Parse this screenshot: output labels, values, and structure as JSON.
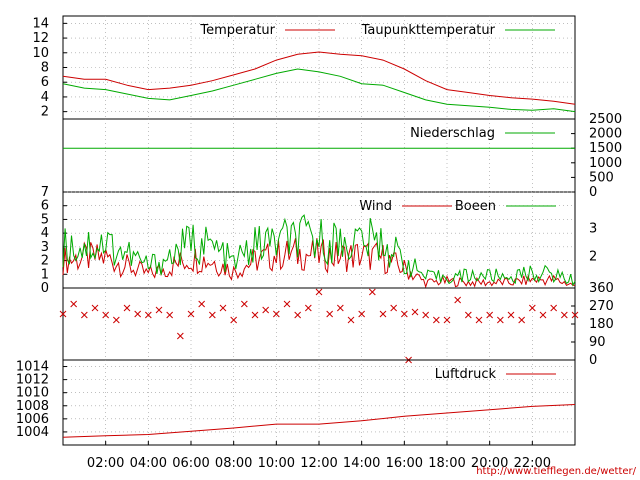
{
  "source_url": "http://www.tiefflegen.de/wetter/",
  "colors": {
    "red": "#cc0000",
    "green": "#00aa00",
    "grid": "#999999",
    "frame": "#000000"
  },
  "x_axis": {
    "labels": [
      "02:00",
      "04:00",
      "06:00",
      "08:00",
      "10:00",
      "12:00",
      "14:00",
      "16:00",
      "18:00",
      "20:00",
      "22:00"
    ],
    "hours": [
      2,
      4,
      6,
      8,
      10,
      12,
      14,
      16,
      18,
      20,
      22
    ],
    "range_hours": [
      0,
      24
    ]
  },
  "chart_data": [
    {
      "type": "line",
      "panel": "temperature",
      "ylim": [
        1,
        15
      ],
      "y_ticks": [
        2,
        4,
        6,
        8,
        10,
        12,
        14
      ],
      "legend": [
        "Temperatur",
        "Taupunkttemperatur"
      ],
      "series": [
        {
          "name": "Temperatur",
          "color": "#cc0000",
          "points": [
            [
              0,
              6.8
            ],
            [
              1,
              6.4
            ],
            [
              2,
              6.4
            ],
            [
              3,
              5.6
            ],
            [
              4,
              5.0
            ],
            [
              5,
              5.2
            ],
            [
              6,
              5.6
            ],
            [
              7,
              6.2
            ],
            [
              8,
              7.0
            ],
            [
              9,
              7.8
            ],
            [
              10,
              9.0
            ],
            [
              11,
              9.8
            ],
            [
              12,
              10.1
            ],
            [
              13,
              9.8
            ],
            [
              14,
              9.6
            ],
            [
              15,
              9.0
            ],
            [
              16,
              7.8
            ],
            [
              17,
              6.2
            ],
            [
              18,
              5.0
            ],
            [
              19,
              4.6
            ],
            [
              20,
              4.2
            ],
            [
              21,
              3.9
            ],
            [
              22,
              3.7
            ],
            [
              23,
              3.4
            ],
            [
              24,
              3.0
            ]
          ]
        },
        {
          "name": "Taupunkttemperatur",
          "color": "#00aa00",
          "points": [
            [
              0,
              5.8
            ],
            [
              1,
              5.2
            ],
            [
              2,
              5.0
            ],
            [
              3,
              4.4
            ],
            [
              4,
              3.8
            ],
            [
              5,
              3.6
            ],
            [
              6,
              4.2
            ],
            [
              7,
              4.8
            ],
            [
              8,
              5.6
            ],
            [
              9,
              6.4
            ],
            [
              10,
              7.2
            ],
            [
              11,
              7.8
            ],
            [
              12,
              7.4
            ],
            [
              13,
              6.8
            ],
            [
              14,
              5.8
            ],
            [
              15,
              5.6
            ],
            [
              16,
              4.6
            ],
            [
              17,
              3.6
            ],
            [
              18,
              3.0
            ],
            [
              19,
              2.8
            ],
            [
              20,
              2.6
            ],
            [
              21,
              2.3
            ],
            [
              22,
              2.2
            ],
            [
              23,
              2.4
            ],
            [
              24,
              2.0
            ]
          ]
        }
      ]
    },
    {
      "type": "line",
      "panel": "precipitation",
      "ylim": [
        0,
        2500
      ],
      "y_ticks": [
        0,
        500,
        1000,
        1500,
        2000,
        2500
      ],
      "legend": [
        "Niederschlag"
      ],
      "series": [
        {
          "name": "Niederschlag",
          "color": "#00aa00",
          "points": [
            [
              0,
              1500
            ],
            [
              24,
              1500
            ]
          ]
        }
      ]
    },
    {
      "type": "line",
      "panel": "wind",
      "ylim": [
        0,
        7
      ],
      "y_ticks": [
        0,
        1,
        2,
        3,
        4,
        5,
        6,
        7
      ],
      "y2_ticks": [
        2,
        3
      ],
      "legend": [
        "Wind",
        "Boeen"
      ],
      "series": [
        {
          "name": "Wind",
          "color": "#cc0000",
          "points": [
            [
              0,
              2.0
            ],
            [
              1,
              2.2
            ],
            [
              2,
              2.2
            ],
            [
              3,
              1.6
            ],
            [
              4,
              1.0
            ],
            [
              5,
              1.5
            ],
            [
              6,
              2.2
            ],
            [
              7,
              2.0
            ],
            [
              8,
              1.2
            ],
            [
              9,
              2.0
            ],
            [
              10,
              2.4
            ],
            [
              11,
              2.5
            ],
            [
              12,
              2.4
            ],
            [
              13,
              2.3
            ],
            [
              14,
              2.4
            ],
            [
              15,
              2.2
            ],
            [
              16,
              1.4
            ],
            [
              17,
              0.4
            ],
            [
              18,
              0.5
            ],
            [
              19,
              0.4
            ],
            [
              20,
              0.4
            ],
            [
              21,
              0.4
            ],
            [
              22,
              0.6
            ],
            [
              23,
              0.6
            ],
            [
              24,
              0.2
            ]
          ]
        },
        {
          "name": "Boeen",
          "color": "#00aa00",
          "points": [
            [
              0,
              3.0
            ],
            [
              1,
              3.1
            ],
            [
              2,
              3.3
            ],
            [
              3,
              2.5
            ],
            [
              4,
              1.6
            ],
            [
              5,
              2.2
            ],
            [
              6,
              3.4
            ],
            [
              7,
              3.0
            ],
            [
              8,
              1.8
            ],
            [
              9,
              3.1
            ],
            [
              10,
              3.4
            ],
            [
              11,
              3.6
            ],
            [
              12,
              3.5
            ],
            [
              13,
              3.3
            ],
            [
              14,
              3.5
            ],
            [
              15,
              3.3
            ],
            [
              16,
              2.0
            ],
            [
              17,
              0.8
            ],
            [
              18,
              0.8
            ],
            [
              19,
              0.9
            ],
            [
              20,
              0.9
            ],
            [
              21,
              0.8
            ],
            [
              22,
              1.1
            ],
            [
              23,
              1.0
            ],
            [
              24,
              0.5
            ]
          ]
        }
      ]
    },
    {
      "type": "scatter",
      "panel": "wind_direction",
      "ylim": [
        0,
        360
      ],
      "y_ticks": [
        0,
        90,
        180,
        270,
        360
      ],
      "marker": "x",
      "color": "#cc0000",
      "points": [
        [
          0,
          230
        ],
        [
          0.5,
          280
        ],
        [
          1,
          225
        ],
        [
          1.5,
          260
        ],
        [
          2,
          225
        ],
        [
          2.5,
          200
        ],
        [
          3,
          260
        ],
        [
          3.5,
          230
        ],
        [
          4,
          225
        ],
        [
          4.5,
          250
        ],
        [
          5,
          225
        ],
        [
          5.5,
          120
        ],
        [
          6,
          230
        ],
        [
          6.5,
          280
        ],
        [
          7,
          225
        ],
        [
          7.5,
          260
        ],
        [
          8,
          200
        ],
        [
          8.5,
          280
        ],
        [
          9,
          225
        ],
        [
          9.5,
          250
        ],
        [
          10,
          230
        ],
        [
          10.5,
          280
        ],
        [
          11,
          225
        ],
        [
          11.5,
          260
        ],
        [
          12,
          340
        ],
        [
          12.5,
          230
        ],
        [
          13,
          260
        ],
        [
          13.5,
          200
        ],
        [
          14,
          230
        ],
        [
          14.5,
          340
        ],
        [
          15,
          230
        ],
        [
          15.5,
          260
        ],
        [
          16,
          230
        ],
        [
          16.2,
          0
        ],
        [
          16.5,
          240
        ],
        [
          17,
          225
        ],
        [
          17.5,
          200
        ],
        [
          18,
          200
        ],
        [
          18.5,
          300
        ],
        [
          19,
          225
        ],
        [
          19.5,
          200
        ],
        [
          20,
          225
        ],
        [
          20.5,
          200
        ],
        [
          21,
          225
        ],
        [
          21.5,
          200
        ],
        [
          22,
          260
        ],
        [
          22.5,
          225
        ],
        [
          23,
          260
        ],
        [
          23.5,
          225
        ],
        [
          24,
          225
        ]
      ]
    },
    {
      "type": "line",
      "panel": "pressure",
      "ylim": [
        1002,
        1015
      ],
      "y_ticks": [
        1004,
        1006,
        1008,
        1010,
        1012,
        1014
      ],
      "legend": [
        "Luftdruck"
      ],
      "series": [
        {
          "name": "Luftdruck",
          "color": "#cc0000",
          "points": [
            [
              0,
              1003.2
            ],
            [
              2,
              1003.4
            ],
            [
              4,
              1003.6
            ],
            [
              6,
              1004.1
            ],
            [
              8,
              1004.6
            ],
            [
              10,
              1005.2
            ],
            [
              12,
              1005.2
            ],
            [
              14,
              1005.7
            ],
            [
              16,
              1006.4
            ],
            [
              18,
              1006.9
            ],
            [
              20,
              1007.4
            ],
            [
              22,
              1007.9
            ],
            [
              24,
              1008.2
            ]
          ]
        }
      ]
    }
  ]
}
